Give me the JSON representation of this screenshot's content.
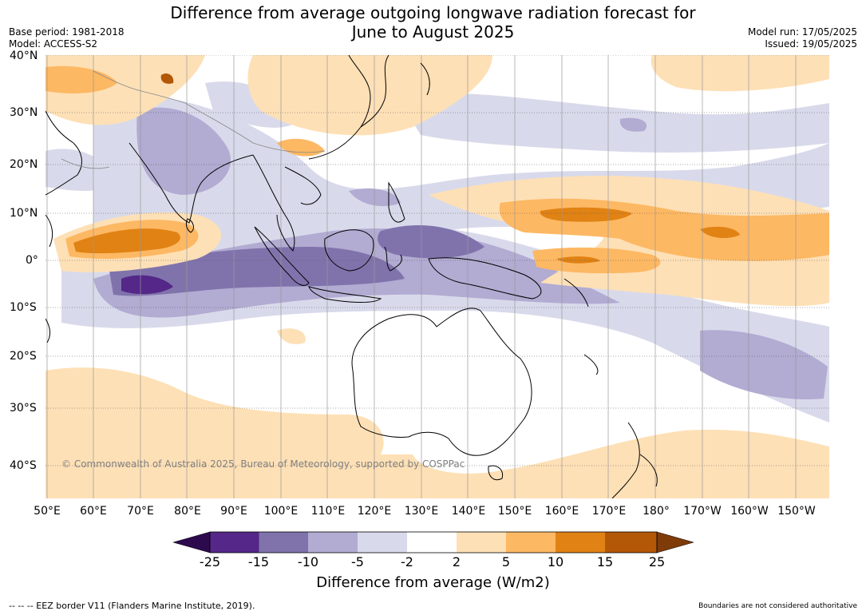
{
  "title": {
    "line1": "Difference from average outgoing longwave radiation forecast for",
    "line2": "June to August 2025"
  },
  "meta_left": {
    "base_period": "Base period: 1981-2018",
    "model": "Model: ACCESS-S2"
  },
  "meta_right": {
    "model_run": "Model run: 17/05/2025",
    "issued": "Issued: 19/05/2025"
  },
  "map": {
    "lat_labels": [
      "40°N",
      "30°N",
      "20°N",
      "10°N",
      "0°",
      "10°S",
      "20°S",
      "30°S",
      "40°S"
    ],
    "lon_labels": [
      "50°E",
      "60°E",
      "70°E",
      "80°E",
      "90°E",
      "100°E",
      "110°E",
      "120°E",
      "130°E",
      "140°E",
      "150°E",
      "160°E",
      "170°E",
      "180°",
      "170°W",
      "160°W",
      "150°W"
    ],
    "copyright": "© Commonwealth of Australia 2025, Bureau of Meteorology, supported by COSPPac"
  },
  "colorbar": {
    "title": "Difference from average (W/m2)",
    "ticks": [
      "-25",
      "-15",
      "-10",
      "-5",
      "-2",
      "2",
      "5",
      "10",
      "15",
      "25"
    ],
    "colors": {
      "under": "#2d0a4e",
      "c1": "#542788",
      "c2": "#8073ac",
      "c3": "#b2abd2",
      "c4": "#d8daeb",
      "c5": "#ffffff",
      "c6": "#fee0b6",
      "c7": "#fdb863",
      "c8": "#e08214",
      "c9": "#b35806",
      "over": "#7f3b08"
    }
  },
  "footer": {
    "left": "--  --  -- EEZ border V11 (Flanders Marine Institute, 2019).",
    "right": "Boundaries are not considered authoritative"
  }
}
